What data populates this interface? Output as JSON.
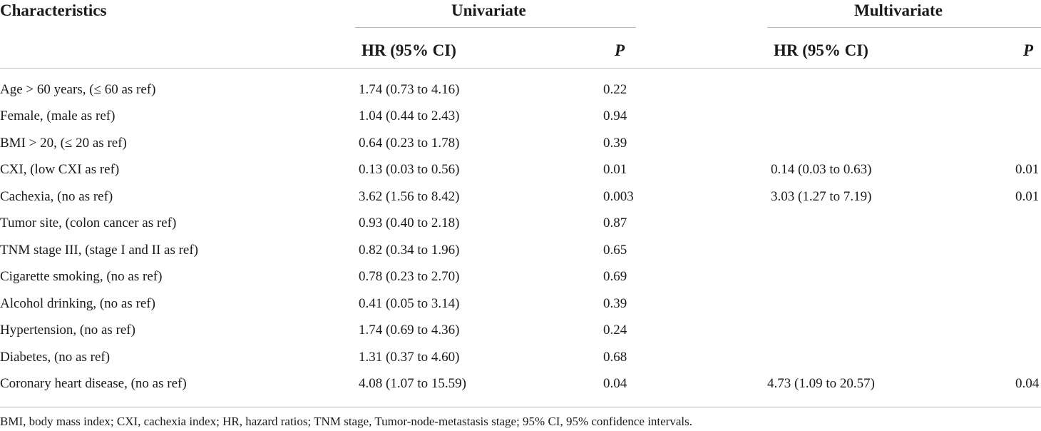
{
  "table": {
    "headers": {
      "characteristics": "Characteristics",
      "univariate": "Univariate",
      "multivariate": "Multivariate",
      "uni_hr": "HR (95% CI)",
      "uni_p": "P",
      "multi_hr": "HR (95% CI)",
      "multi_p": "P"
    },
    "rows": [
      {
        "label": "Age > 60 years, (≤ 60 as ref)",
        "uni_hr": "1.74 (0.73 to 4.16)",
        "uni_p": "0.22",
        "multi_hr": "",
        "multi_p": ""
      },
      {
        "label": "Female, (male as ref)",
        "uni_hr": "1.04 (0.44 to 2.43)",
        "uni_p": "0.94",
        "multi_hr": "",
        "multi_p": ""
      },
      {
        "label": "BMI > 20, (≤ 20 as ref)",
        "uni_hr": "0.64 (0.23 to 1.78)",
        "uni_p": "0.39",
        "multi_hr": "",
        "multi_p": ""
      },
      {
        "label": "CXI, (low CXI as ref)",
        "uni_hr": "0.13 (0.03 to 0.56)",
        "uni_p": "0.01",
        "multi_hr": "0.14 (0.03 to 0.63)",
        "multi_p": "0.01"
      },
      {
        "label": "Cachexia, (no as ref)",
        "uni_hr": "3.62 (1.56 to 8.42)",
        "uni_p": "0.003",
        "multi_hr": "3.03 (1.27 to 7.19)",
        "multi_p": "0.01"
      },
      {
        "label": "Tumor site, (colon cancer as ref)",
        "uni_hr": "0.93 (0.40 to 2.18)",
        "uni_p": "0.87",
        "multi_hr": "",
        "multi_p": ""
      },
      {
        "label": "TNM stage III, (stage I and II as ref)",
        "uni_hr": "0.82 (0.34 to 1.96)",
        "uni_p": "0.65",
        "multi_hr": "",
        "multi_p": ""
      },
      {
        "label": "Cigarette smoking, (no as ref)",
        "uni_hr": "0.78 (0.23 to 2.70)",
        "uni_p": "0.69",
        "multi_hr": "",
        "multi_p": ""
      },
      {
        "label": "Alcohol drinking, (no as ref)",
        "uni_hr": "0.41 (0.05 to 3.14)",
        "uni_p": "0.39",
        "multi_hr": "",
        "multi_p": ""
      },
      {
        "label": "Hypertension, (no as ref)",
        "uni_hr": "1.74 (0.69 to 4.36)",
        "uni_p": "0.24",
        "multi_hr": "",
        "multi_p": ""
      },
      {
        "label": "Diabetes, (no as ref)",
        "uni_hr": "1.31 (0.37 to 4.60)",
        "uni_p": "0.68",
        "multi_hr": "",
        "multi_p": ""
      },
      {
        "label": "Coronary heart disease, (no as ref)",
        "uni_hr": "4.08 (1.07 to 15.59)",
        "uni_p": "0.04",
        "multi_hr": "4.73 (1.09 to 20.57)",
        "multi_p": "0.04"
      }
    ],
    "footnote": "BMI, body mass index; CXI, cachexia index; HR, hazard ratios; TNM stage, Tumor-node-metastasis stage; 95% CI, 95% confidence intervals."
  }
}
